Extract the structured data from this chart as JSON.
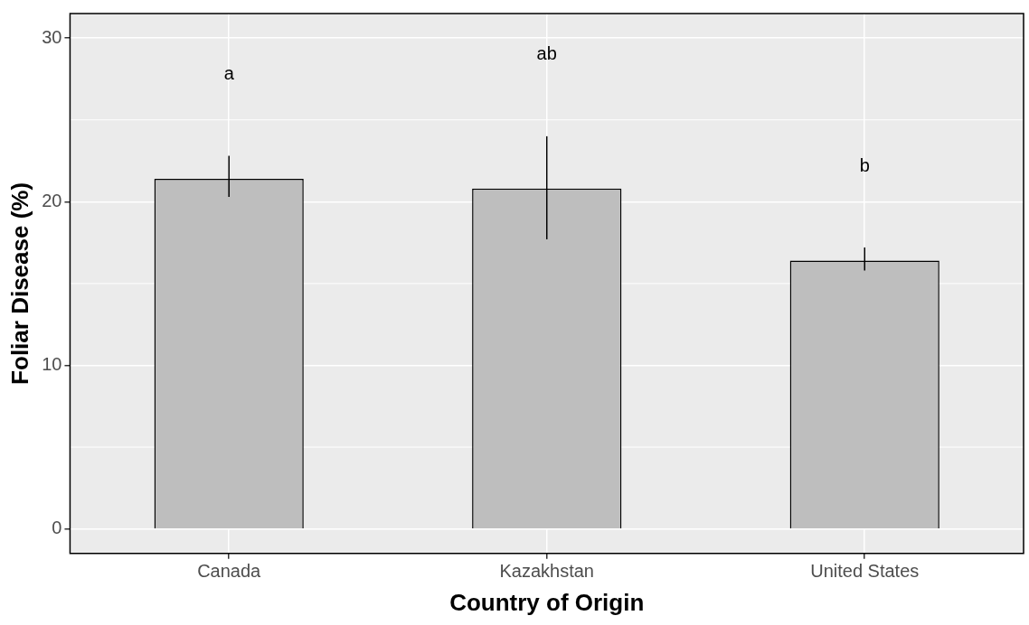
{
  "chart_data": {
    "type": "bar",
    "xlabel": "Country of Origin",
    "ylabel": "Foliar Disease (%)",
    "categories": [
      "Canada",
      "Kazakhstan",
      "United States"
    ],
    "values": [
      21.4,
      20.8,
      16.4
    ],
    "errors": [
      [
        20.3,
        22.8
      ],
      [
        17.7,
        24.0
      ],
      [
        15.8,
        17.2
      ]
    ],
    "color": "#bebebe",
    "ylim": [
      -1.5,
      31.5
    ],
    "yticks": [
      0,
      10,
      20,
      30
    ],
    "grid": true,
    "annotations": [
      "a",
      "ab",
      "b"
    ]
  }
}
